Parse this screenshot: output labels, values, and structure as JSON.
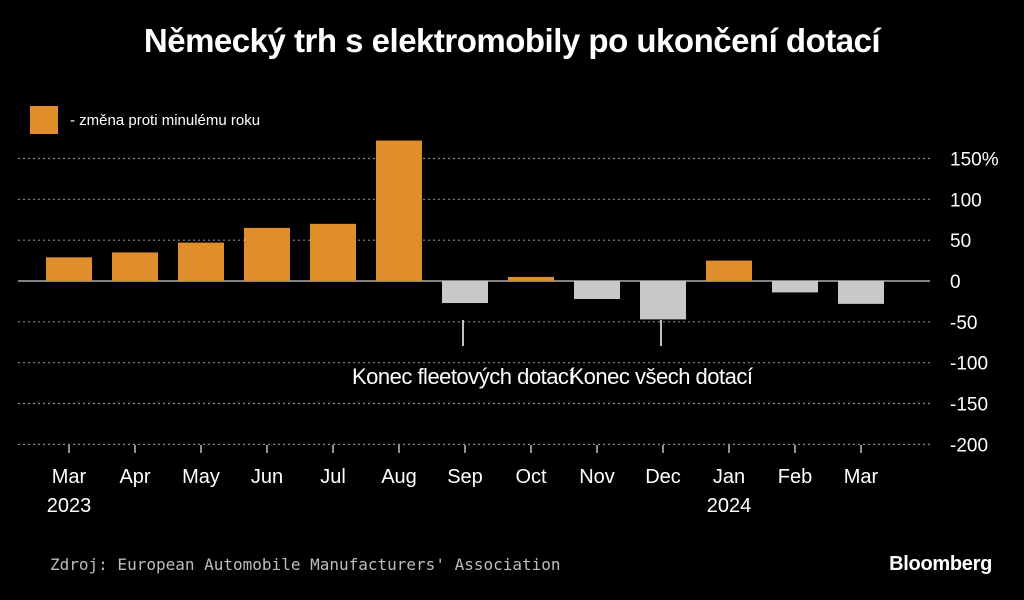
{
  "chart_data": {
    "type": "bar",
    "title": "Německý trh s elektromobily po ukončení dotací",
    "legend": [
      {
        "name": "- změna proti  minulému roku",
        "color": "#e08d2b"
      }
    ],
    "categories": [
      "Mar",
      "Apr",
      "May",
      "Jun",
      "Jul",
      "Aug",
      "Sep",
      "Oct",
      "Nov",
      "Dec",
      "Jan",
      "Feb",
      "Mar"
    ],
    "year_labels": [
      {
        "category_index": 0,
        "label": "2023"
      },
      {
        "category_index": 10,
        "label": "2024"
      }
    ],
    "series": [
      {
        "name": "- změna proti  minulému roku",
        "values": [
          29,
          35,
          47,
          65,
          70,
          172,
          -27,
          5,
          -22,
          -47,
          25,
          -14,
          -28
        ]
      }
    ],
    "y_ticks": [
      {
        "value": 150,
        "label": "150%"
      },
      {
        "value": 100,
        "label": "100"
      },
      {
        "value": 50,
        "label": "50"
      },
      {
        "value": 0,
        "label": "0"
      },
      {
        "value": -50,
        "label": "-50"
      },
      {
        "value": -100,
        "label": "-100"
      },
      {
        "value": -150,
        "label": "-150"
      },
      {
        "value": -200,
        "label": "-200"
      }
    ],
    "ylim": [
      -200,
      175
    ],
    "grid": true,
    "legend_position": "top-left",
    "colors": {
      "positive": "#e08d2b",
      "negative": "#c8c8c8",
      "grid": "#8a8a8a"
    },
    "annotations": [
      {
        "category_index": 6,
        "text": "Konec fleetových dotací"
      },
      {
        "category_index": 9,
        "text": "Konec všech dotací"
      }
    ]
  },
  "footer": {
    "source": "Zdroj: European Automobile Manufacturers' Association",
    "brand": "Bloomberg"
  }
}
